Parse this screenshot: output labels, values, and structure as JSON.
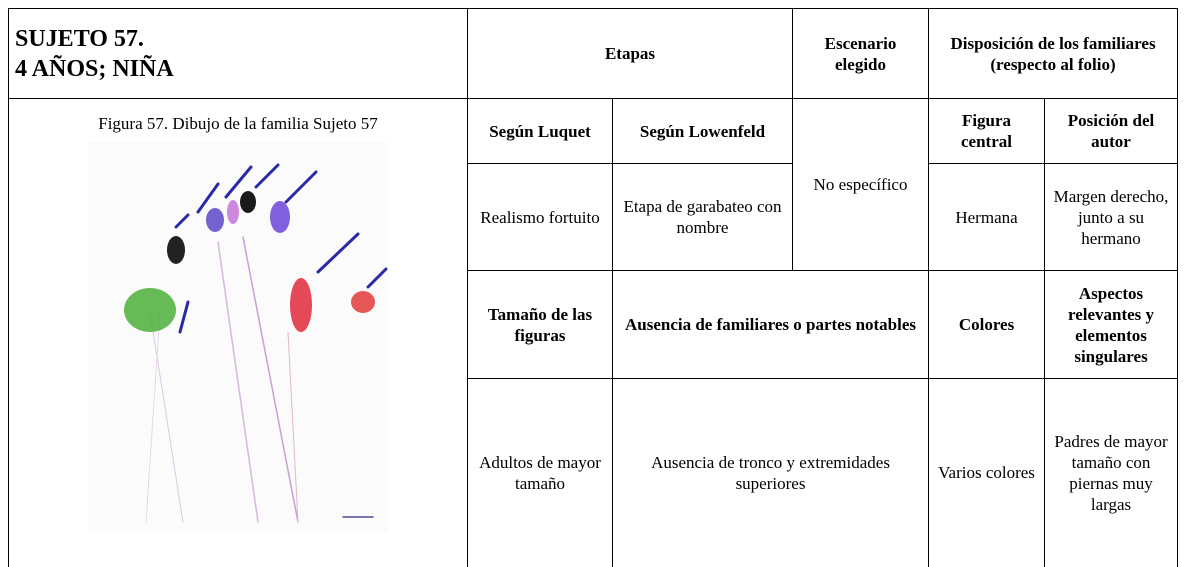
{
  "header": {
    "subject_lines": [
      "SUJETO 57.",
      "4 AÑOS; NIÑA"
    ],
    "stages": "Etapas",
    "scenario": "Escenario elegido",
    "arrangement": "Disposición de los familiares (respecto al folio)"
  },
  "figure_caption": "Figura 57. Dibujo de la familia Sujeto 57",
  "stage_headers": {
    "luquet": "Según Luquet",
    "lowenfeld": "Según Lowenfeld",
    "central_figure": "Figura central",
    "author_position": "Posición del autor"
  },
  "stage_values": {
    "luquet": "Realismo fortuito",
    "lowenfeld": "Etapa de garabateo con nombre",
    "scenario": "No específico",
    "central_figure": "Hermana",
    "author_position": "Margen derecho, junto a su hermano"
  },
  "detail_headers": {
    "size": "Tamaño de las figuras",
    "absence": "Ausencia de familiares o partes notables",
    "colors": "Colores",
    "aspects": "Aspectos relevantes y elementos singulares"
  },
  "detail_values": {
    "size": "Adultos de mayor tamaño",
    "absence": "Ausencia de tronco y extremidades superiores",
    "colors": "Varios colores",
    "aspects": "Padres de mayor tamaño con piernas muy largas"
  }
}
